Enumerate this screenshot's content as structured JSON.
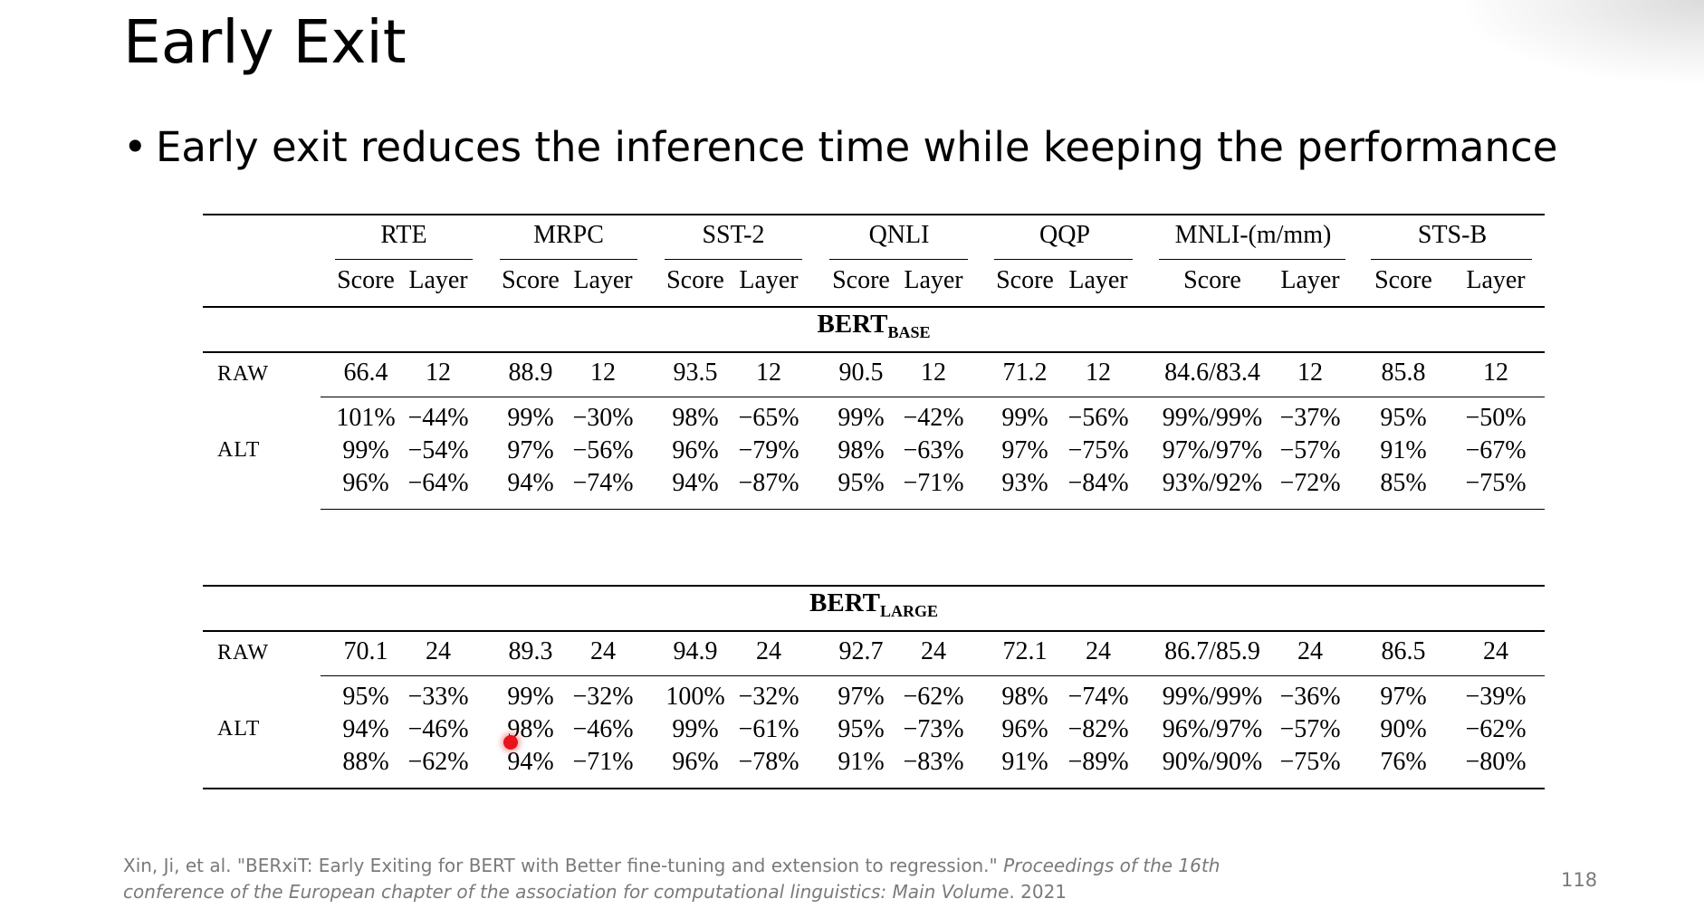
{
  "slide": {
    "title": "Early Exit",
    "bullet": "Early exit reduces the inference time while keeping the performance",
    "page_number": "118"
  },
  "citation": {
    "plain": "Xin, Ji, et al. \"BERxiT: Early Exiting for BERT with Better fine-tuning and extension to regression.\" ",
    "italic": "Proceedings of the 16th conference of the European chapter of the association for computational linguistics: Main Volume",
    "tail": ". 2021"
  },
  "table": {
    "datasets": [
      "RTE",
      "MRPC",
      "SST-2",
      "QNLI",
      "QQP",
      "MNLI-(m/mm)",
      "STS-B"
    ],
    "subheaders": [
      "Score",
      "Layer"
    ],
    "sections": [
      {
        "title_main": "BERT",
        "title_sub": "BASE",
        "raw_label": "RAW",
        "raw": [
          [
            "66.4",
            "12"
          ],
          [
            "88.9",
            "12"
          ],
          [
            "93.5",
            "12"
          ],
          [
            "90.5",
            "12"
          ],
          [
            "71.2",
            "12"
          ],
          [
            "84.6/83.4",
            "12"
          ],
          [
            "85.8",
            "12"
          ]
        ],
        "alt_label": "ALT",
        "alt": [
          [
            [
              "101%",
              "−44%"
            ],
            [
              "99%",
              "−30%"
            ],
            [
              "98%",
              "−65%"
            ],
            [
              "99%",
              "−42%"
            ],
            [
              "99%",
              "−56%"
            ],
            [
              "99%/99%",
              "−37%"
            ],
            [
              "95%",
              "−50%"
            ]
          ],
          [
            [
              "99%",
              "−54%"
            ],
            [
              "97%",
              "−56%"
            ],
            [
              "96%",
              "−79%"
            ],
            [
              "98%",
              "−63%"
            ],
            [
              "97%",
              "−75%"
            ],
            [
              "97%/97%",
              "−57%"
            ],
            [
              "91%",
              "−67%"
            ]
          ],
          [
            [
              "96%",
              "−64%"
            ],
            [
              "94%",
              "−74%"
            ],
            [
              "94%",
              "−87%"
            ],
            [
              "95%",
              "−71%"
            ],
            [
              "93%",
              "−84%"
            ],
            [
              "93%/92%",
              "−72%"
            ],
            [
              "85%",
              "−75%"
            ]
          ]
        ]
      },
      {
        "title_main": "BERT",
        "title_sub": "LARGE",
        "raw_label": "RAW",
        "raw": [
          [
            "70.1",
            "24"
          ],
          [
            "89.3",
            "24"
          ],
          [
            "94.9",
            "24"
          ],
          [
            "92.7",
            "24"
          ],
          [
            "72.1",
            "24"
          ],
          [
            "86.7/85.9",
            "24"
          ],
          [
            "86.5",
            "24"
          ]
        ],
        "alt_label": "ALT",
        "alt": [
          [
            [
              "95%",
              "−33%"
            ],
            [
              "99%",
              "−32%"
            ],
            [
              "100%",
              "−32%"
            ],
            [
              "97%",
              "−62%"
            ],
            [
              "98%",
              "−74%"
            ],
            [
              "99%/99%",
              "−36%"
            ],
            [
              "97%",
              "−39%"
            ]
          ],
          [
            [
              "94%",
              "−46%"
            ],
            [
              "98%",
              "−46%"
            ],
            [
              "99%",
              "−61%"
            ],
            [
              "95%",
              "−73%"
            ],
            [
              "96%",
              "−82%"
            ],
            [
              "96%/97%",
              "−57%"
            ],
            [
              "90%",
              "−62%"
            ]
          ],
          [
            [
              "88%",
              "−62%"
            ],
            [
              "94%",
              "−71%"
            ],
            [
              "96%",
              "−78%"
            ],
            [
              "91%",
              "−83%"
            ],
            [
              "91%",
              "−89%"
            ],
            [
              "90%/90%",
              "−75%"
            ],
            [
              "76%",
              "−80%"
            ]
          ]
        ]
      }
    ]
  }
}
